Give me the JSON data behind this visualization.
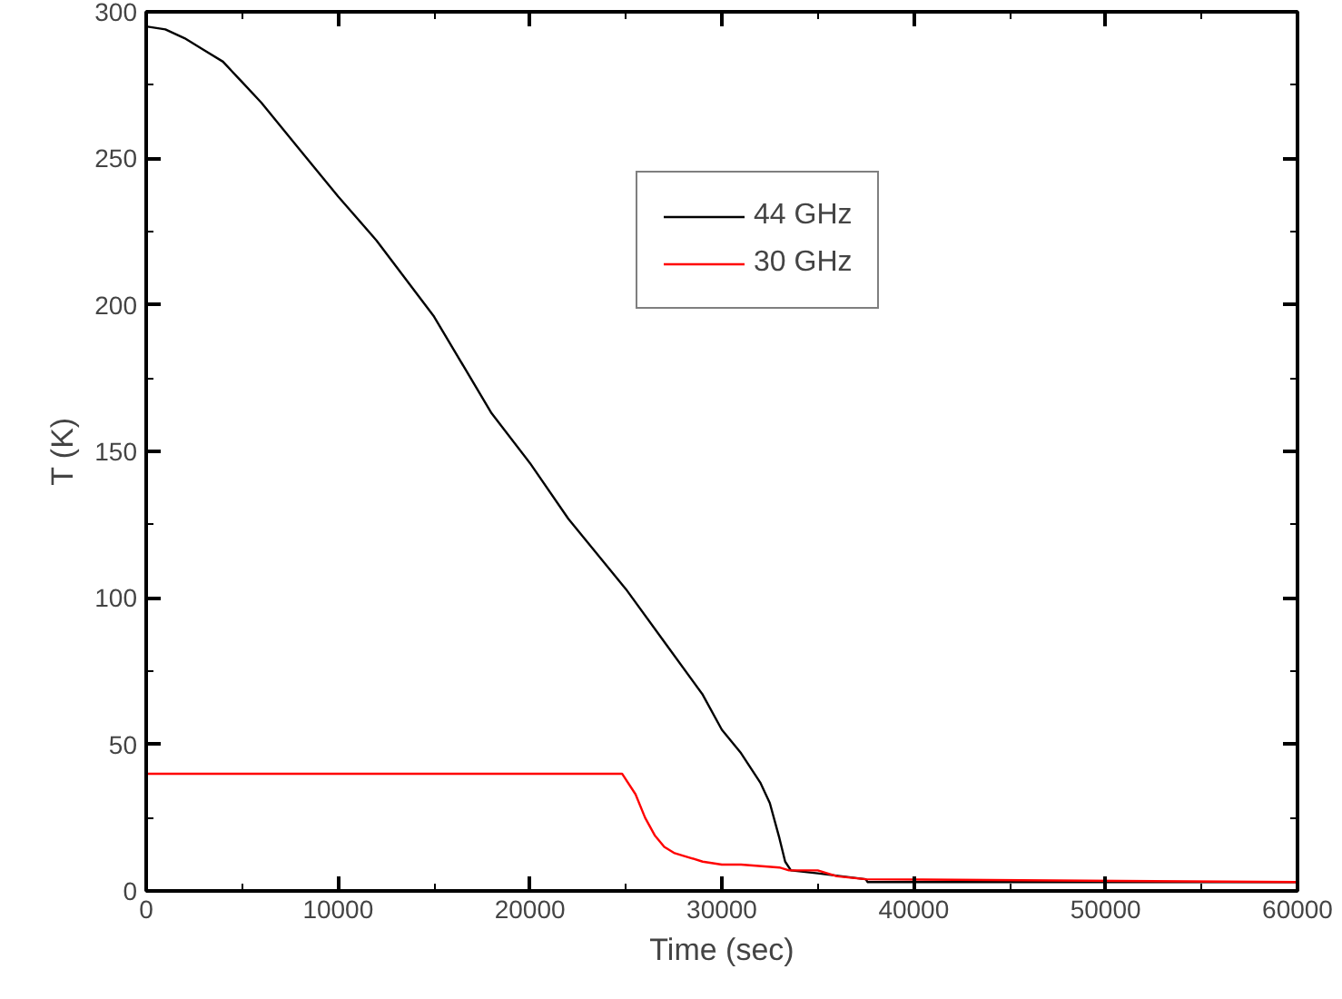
{
  "chart_data": {
    "type": "line",
    "xlabel": "Time (sec)",
    "ylabel": "T (K)",
    "xlim": [
      0,
      60000
    ],
    "ylim": [
      0,
      300
    ],
    "xticks": [
      0,
      10000,
      20000,
      30000,
      40000,
      50000,
      60000
    ],
    "yticks": [
      0,
      50,
      100,
      150,
      200,
      250,
      300
    ],
    "grid": false,
    "legend": "top right",
    "marker": "none",
    "line_style": "solid",
    "series": [
      {
        "name": "44 GHz",
        "color": "#000000",
        "x": [
          0,
          1000,
          2000,
          3000,
          4000,
          5000,
          6000,
          8000,
          10000,
          12000,
          15000,
          18000,
          20000,
          22000,
          25000,
          27000,
          29000,
          30000,
          31000,
          32000,
          32500,
          33000,
          33300,
          33600,
          35000,
          37500,
          37600,
          60000
        ],
        "values": [
          295,
          294,
          291,
          287,
          283,
          276,
          269,
          253,
          237,
          222,
          196,
          163,
          146,
          127,
          103,
          85,
          67,
          55,
          47,
          37,
          30,
          18,
          10,
          7,
          6,
          4,
          3,
          3
        ]
      },
      {
        "name": "30 GHz",
        "color": "#ff0000",
        "x": [
          0,
          24800,
          25500,
          26000,
          26500,
          27000,
          27500,
          28000,
          29000,
          30000,
          31000,
          33000,
          33500,
          35000,
          36000,
          37500,
          60000
        ],
        "values": [
          40,
          40,
          33,
          25,
          19,
          15,
          13,
          12,
          10,
          9,
          9,
          8,
          7,
          7,
          5,
          4,
          3
        ]
      }
    ]
  }
}
